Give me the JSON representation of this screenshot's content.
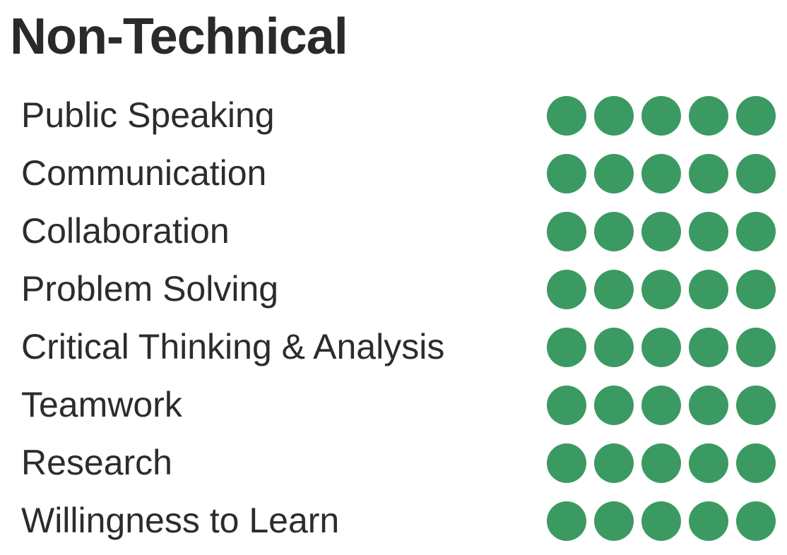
{
  "section": {
    "title": "Non-Technical"
  },
  "rating_max": 5,
  "colors": {
    "filled": "#3b9a62",
    "empty": "#e3e3e3"
  },
  "skills": [
    {
      "label": "Public Speaking",
      "rating": 5
    },
    {
      "label": "Communication",
      "rating": 5
    },
    {
      "label": "Collaboration",
      "rating": 5
    },
    {
      "label": "Problem Solving",
      "rating": 5
    },
    {
      "label": "Critical Thinking & Analysis",
      "rating": 5
    },
    {
      "label": "Teamwork",
      "rating": 5
    },
    {
      "label": "Research",
      "rating": 5
    },
    {
      "label": "Willingness to Learn",
      "rating": 5
    }
  ]
}
